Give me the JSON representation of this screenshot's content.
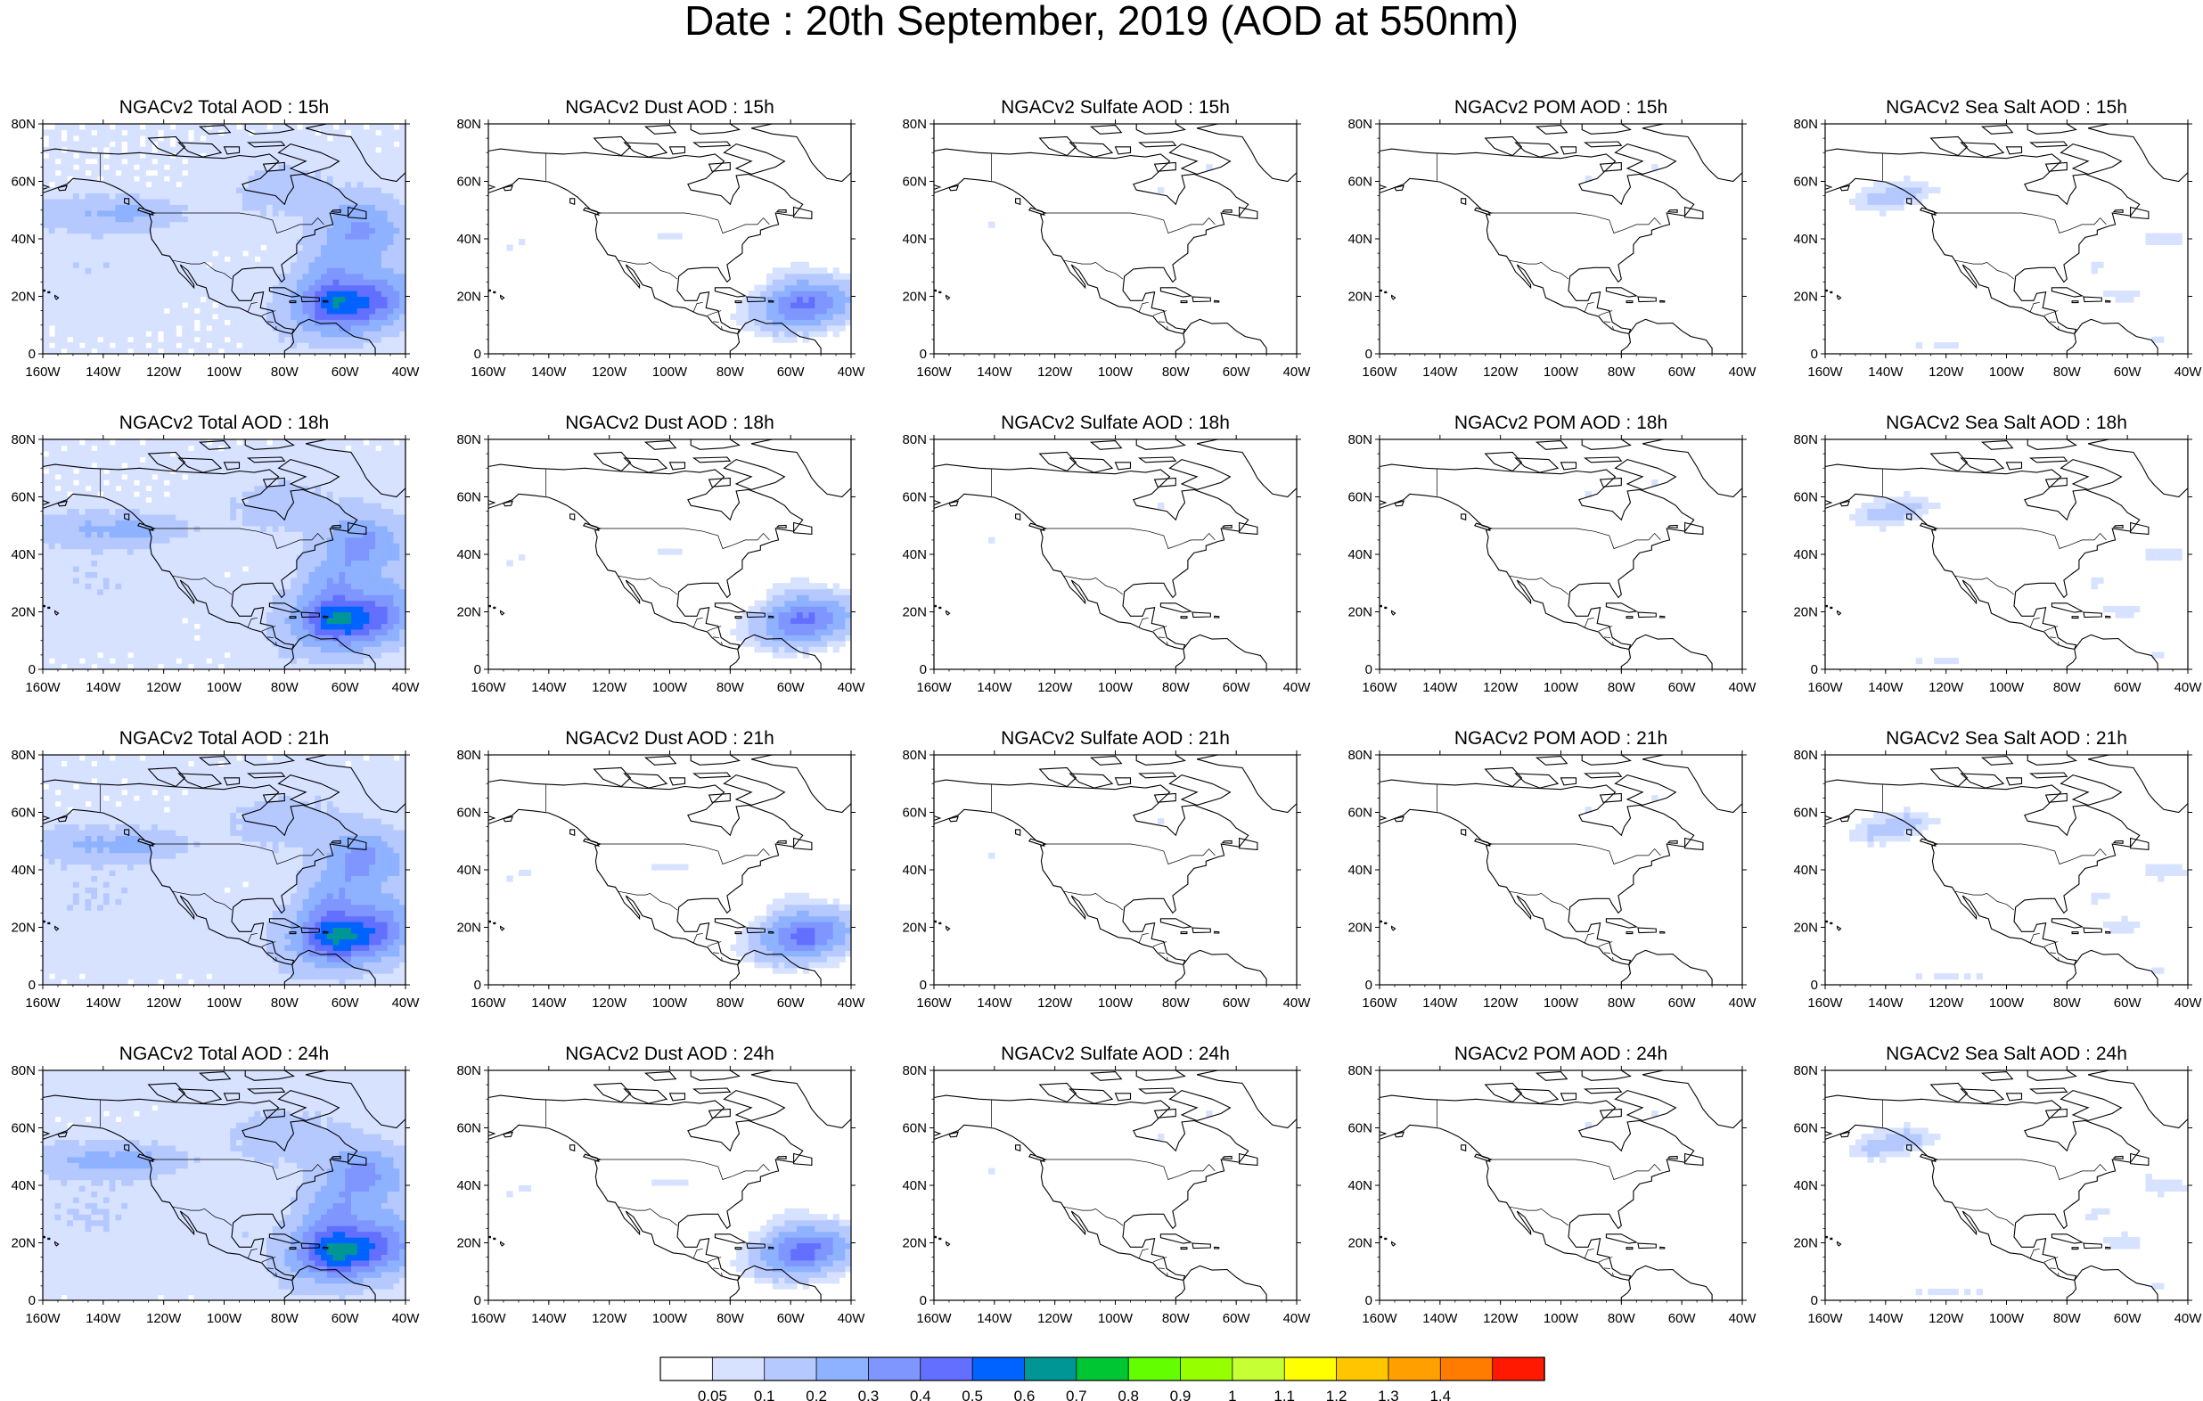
{
  "title": "Date : 20th September, 2019 (AOD at 550nm)",
  "panels": [
    [
      {
        "title": "NGACv2 Total AOD : 15h",
        "field": "total",
        "scale": 1.0
      },
      {
        "title": "NGACv2 Dust AOD : 15h",
        "field": "dust",
        "scale": 1.0
      },
      {
        "title": "NGACv2 Sulfate AOD : 15h",
        "field": "sulfate",
        "scale": 1.0
      },
      {
        "title": "NGACv2 POM AOD : 15h",
        "field": "pom",
        "scale": 1.0
      },
      {
        "title": "NGACv2 Sea Salt AOD : 15h",
        "field": "seasalt",
        "scale": 1.0
      }
    ],
    [
      {
        "title": "NGACv2 Total AOD : 18h",
        "field": "total",
        "scale": 1.03
      },
      {
        "title": "NGACv2 Dust AOD : 18h",
        "field": "dust",
        "scale": 1.0
      },
      {
        "title": "NGACv2 Sulfate AOD : 18h",
        "field": "sulfate",
        "scale": 0.95
      },
      {
        "title": "NGACv2 POM AOD : 18h",
        "field": "pom",
        "scale": 0.9
      },
      {
        "title": "NGACv2 Sea Salt AOD : 18h",
        "field": "seasalt",
        "scale": 1.0
      }
    ],
    [
      {
        "title": "NGACv2 Total AOD : 21h",
        "field": "total",
        "scale": 1.05
      },
      {
        "title": "NGACv2 Dust AOD : 21h",
        "field": "dust",
        "scale": 1.02
      },
      {
        "title": "NGACv2 Sulfate AOD : 21h",
        "field": "sulfate",
        "scale": 0.95
      },
      {
        "title": "NGACv2 POM AOD : 21h",
        "field": "pom",
        "scale": 0.9
      },
      {
        "title": "NGACv2 Sea Salt AOD : 21h",
        "field": "seasalt",
        "scale": 1.05
      }
    ],
    [
      {
        "title": "NGACv2 Total AOD : 24h",
        "field": "total",
        "scale": 1.08
      },
      {
        "title": "NGACv2 Dust AOD : 24h",
        "field": "dust",
        "scale": 1.03
      },
      {
        "title": "NGACv2 Sulfate AOD : 24h",
        "field": "sulfate",
        "scale": 1.0
      },
      {
        "title": "NGACv2 POM AOD : 24h",
        "field": "pom",
        "scale": 0.9
      },
      {
        "title": "NGACv2 Sea Salt  AOD : 24h",
        "field": "seasalt",
        "scale": 1.1
      }
    ]
  ],
  "map_extent": {
    "lon": [
      -160,
      -40
    ],
    "lat": [
      0,
      80
    ]
  },
  "lat_ticks": [
    "0",
    "20N",
    "40N",
    "60N",
    "80N"
  ],
  "lon_ticks": [
    "160W",
    "140W",
    "120W",
    "100W",
    "80W",
    "60W",
    "40W"
  ],
  "colorbar": {
    "colors": [
      "#ffffff",
      "#d6e2ff",
      "#b5c9ff",
      "#8eb2ff",
      "#7f96ff",
      "#6370ff",
      "#0063ff",
      "#009696",
      "#00c633",
      "#63ff00",
      "#96ff00",
      "#c6ff33",
      "#ffff00",
      "#ffc600",
      "#ffa000",
      "#ff7c00",
      "#ff1900"
    ],
    "labels": [
      "0.05",
      "0.1",
      "0.2",
      "0.3",
      "0.4",
      "0.5",
      "0.6",
      "0.7",
      "0.8",
      "0.9",
      "1",
      "1.1",
      "1.2",
      "1.3",
      "1.4"
    ]
  }
}
